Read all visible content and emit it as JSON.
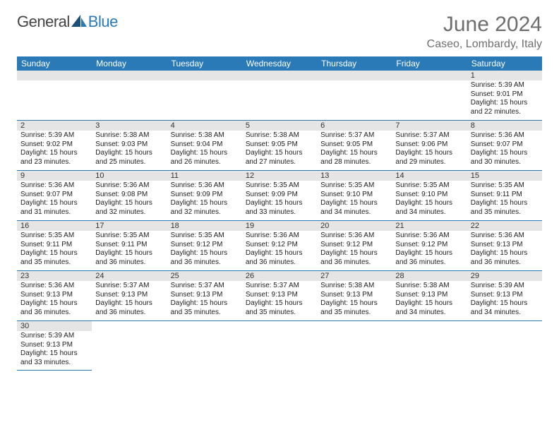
{
  "logo": {
    "part1": "General",
    "part2": "Blue"
  },
  "title": {
    "month": "June 2024",
    "location": "Caseo, Lombardy, Italy"
  },
  "colors": {
    "header_bg": "#2a7ab8",
    "header_text": "#ffffff",
    "daynum_bg": "#e5e5e5",
    "border": "#2a7ab8",
    "title_color": "#6e6e6e"
  },
  "day_names": [
    "Sunday",
    "Monday",
    "Tuesday",
    "Wednesday",
    "Thursday",
    "Friday",
    "Saturday"
  ],
  "weeks": [
    {
      "nums": [
        "",
        "",
        "",
        "",
        "",
        "",
        "1"
      ],
      "info": [
        {
          "sr": "",
          "ss": "",
          "dl": ""
        },
        {
          "sr": "",
          "ss": "",
          "dl": ""
        },
        {
          "sr": "",
          "ss": "",
          "dl": ""
        },
        {
          "sr": "",
          "ss": "",
          "dl": ""
        },
        {
          "sr": "",
          "ss": "",
          "dl": ""
        },
        {
          "sr": "",
          "ss": "",
          "dl": ""
        },
        {
          "sr": "Sunrise: 5:39 AM",
          "ss": "Sunset: 9:01 PM",
          "dl": "Daylight: 15 hours and 22 minutes."
        }
      ]
    },
    {
      "nums": [
        "2",
        "3",
        "4",
        "5",
        "6",
        "7",
        "8"
      ],
      "info": [
        {
          "sr": "Sunrise: 5:39 AM",
          "ss": "Sunset: 9:02 PM",
          "dl": "Daylight: 15 hours and 23 minutes."
        },
        {
          "sr": "Sunrise: 5:38 AM",
          "ss": "Sunset: 9:03 PM",
          "dl": "Daylight: 15 hours and 25 minutes."
        },
        {
          "sr": "Sunrise: 5:38 AM",
          "ss": "Sunset: 9:04 PM",
          "dl": "Daylight: 15 hours and 26 minutes."
        },
        {
          "sr": "Sunrise: 5:38 AM",
          "ss": "Sunset: 9:05 PM",
          "dl": "Daylight: 15 hours and 27 minutes."
        },
        {
          "sr": "Sunrise: 5:37 AM",
          "ss": "Sunset: 9:05 PM",
          "dl": "Daylight: 15 hours and 28 minutes."
        },
        {
          "sr": "Sunrise: 5:37 AM",
          "ss": "Sunset: 9:06 PM",
          "dl": "Daylight: 15 hours and 29 minutes."
        },
        {
          "sr": "Sunrise: 5:36 AM",
          "ss": "Sunset: 9:07 PM",
          "dl": "Daylight: 15 hours and 30 minutes."
        }
      ]
    },
    {
      "nums": [
        "9",
        "10",
        "11",
        "12",
        "13",
        "14",
        "15"
      ],
      "info": [
        {
          "sr": "Sunrise: 5:36 AM",
          "ss": "Sunset: 9:07 PM",
          "dl": "Daylight: 15 hours and 31 minutes."
        },
        {
          "sr": "Sunrise: 5:36 AM",
          "ss": "Sunset: 9:08 PM",
          "dl": "Daylight: 15 hours and 32 minutes."
        },
        {
          "sr": "Sunrise: 5:36 AM",
          "ss": "Sunset: 9:09 PM",
          "dl": "Daylight: 15 hours and 32 minutes."
        },
        {
          "sr": "Sunrise: 5:35 AM",
          "ss": "Sunset: 9:09 PM",
          "dl": "Daylight: 15 hours and 33 minutes."
        },
        {
          "sr": "Sunrise: 5:35 AM",
          "ss": "Sunset: 9:10 PM",
          "dl": "Daylight: 15 hours and 34 minutes."
        },
        {
          "sr": "Sunrise: 5:35 AM",
          "ss": "Sunset: 9:10 PM",
          "dl": "Daylight: 15 hours and 34 minutes."
        },
        {
          "sr": "Sunrise: 5:35 AM",
          "ss": "Sunset: 9:11 PM",
          "dl": "Daylight: 15 hours and 35 minutes."
        }
      ]
    },
    {
      "nums": [
        "16",
        "17",
        "18",
        "19",
        "20",
        "21",
        "22"
      ],
      "info": [
        {
          "sr": "Sunrise: 5:35 AM",
          "ss": "Sunset: 9:11 PM",
          "dl": "Daylight: 15 hours and 35 minutes."
        },
        {
          "sr": "Sunrise: 5:35 AM",
          "ss": "Sunset: 9:11 PM",
          "dl": "Daylight: 15 hours and 36 minutes."
        },
        {
          "sr": "Sunrise: 5:35 AM",
          "ss": "Sunset: 9:12 PM",
          "dl": "Daylight: 15 hours and 36 minutes."
        },
        {
          "sr": "Sunrise: 5:36 AM",
          "ss": "Sunset: 9:12 PM",
          "dl": "Daylight: 15 hours and 36 minutes."
        },
        {
          "sr": "Sunrise: 5:36 AM",
          "ss": "Sunset: 9:12 PM",
          "dl": "Daylight: 15 hours and 36 minutes."
        },
        {
          "sr": "Sunrise: 5:36 AM",
          "ss": "Sunset: 9:12 PM",
          "dl": "Daylight: 15 hours and 36 minutes."
        },
        {
          "sr": "Sunrise: 5:36 AM",
          "ss": "Sunset: 9:13 PM",
          "dl": "Daylight: 15 hours and 36 minutes."
        }
      ]
    },
    {
      "nums": [
        "23",
        "24",
        "25",
        "26",
        "27",
        "28",
        "29"
      ],
      "info": [
        {
          "sr": "Sunrise: 5:36 AM",
          "ss": "Sunset: 9:13 PM",
          "dl": "Daylight: 15 hours and 36 minutes."
        },
        {
          "sr": "Sunrise: 5:37 AM",
          "ss": "Sunset: 9:13 PM",
          "dl": "Daylight: 15 hours and 36 minutes."
        },
        {
          "sr": "Sunrise: 5:37 AM",
          "ss": "Sunset: 9:13 PM",
          "dl": "Daylight: 15 hours and 35 minutes."
        },
        {
          "sr": "Sunrise: 5:37 AM",
          "ss": "Sunset: 9:13 PM",
          "dl": "Daylight: 15 hours and 35 minutes."
        },
        {
          "sr": "Sunrise: 5:38 AM",
          "ss": "Sunset: 9:13 PM",
          "dl": "Daylight: 15 hours and 35 minutes."
        },
        {
          "sr": "Sunrise: 5:38 AM",
          "ss": "Sunset: 9:13 PM",
          "dl": "Daylight: 15 hours and 34 minutes."
        },
        {
          "sr": "Sunrise: 5:39 AM",
          "ss": "Sunset: 9:13 PM",
          "dl": "Daylight: 15 hours and 34 minutes."
        }
      ]
    }
  ],
  "trailing": {
    "num": "30",
    "info": {
      "sr": "Sunrise: 5:39 AM",
      "ss": "Sunset: 9:13 PM",
      "dl": "Daylight: 15 hours and 33 minutes."
    }
  }
}
